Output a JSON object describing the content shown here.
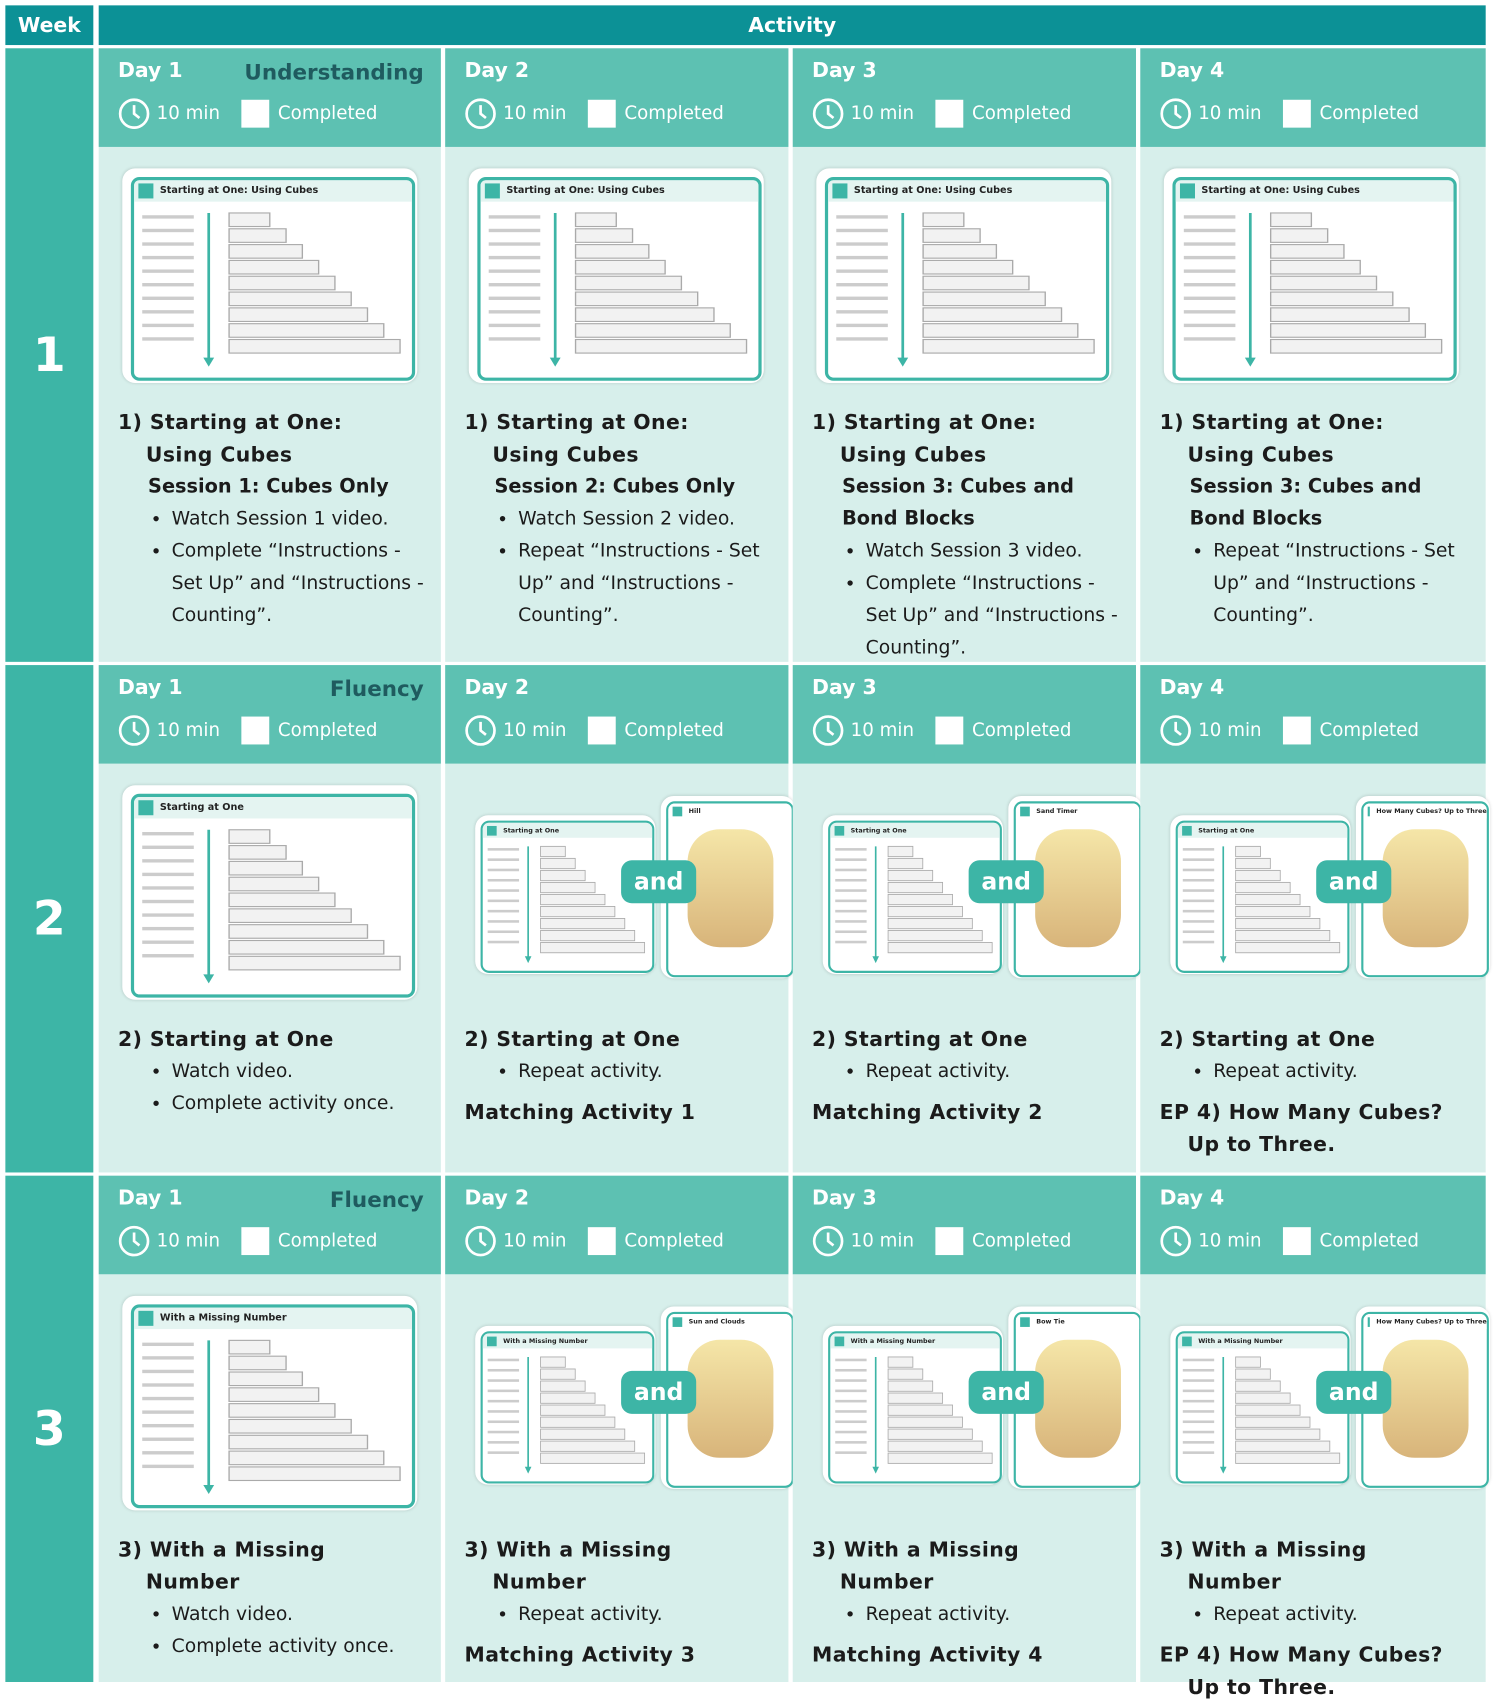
{
  "header": {
    "week": "Week",
    "activity": "Activity"
  },
  "weeks": [
    {
      "number": "1",
      "days": [
        {
          "day": "Day 1",
          "tag": "Understanding",
          "time": "10 min",
          "completed": "Completed",
          "thumbs": [
            {
              "title": "Starting at One: Using Cubes"
            }
          ],
          "title": "1) Starting at One: Using Cubes",
          "session": "Session 1: Cubes Only",
          "bullets": [
            "Watch Session 1 video.",
            "Complete “Instructions - Set Up” and “Instructions - Counting”."
          ]
        },
        {
          "day": "Day 2",
          "time": "10 min",
          "completed": "Completed",
          "thumbs": [
            {
              "title": "Starting at One: Using Cubes"
            }
          ],
          "title": "1) Starting at One: Using Cubes",
          "session": "Session 2: Cubes Only",
          "bullets": [
            "Watch Session 2 video.",
            "Repeat “Instructions - Set Up” and “Instructions - Counting”."
          ]
        },
        {
          "day": "Day 3",
          "time": "10 min",
          "completed": "Completed",
          "thumbs": [
            {
              "title": "Starting at One: Using Cubes"
            }
          ],
          "title": "1) Starting at One: Using Cubes",
          "session": "Session 3: Cubes and Bond Blocks",
          "bullets": [
            "Watch Session 3 video.",
            "Complete “Instructions - Set Up” and “Instructions - Counting”."
          ]
        },
        {
          "day": "Day 4",
          "time": "10 min",
          "completed": "Completed",
          "thumbs": [
            {
              "title": "Starting at One: Using Cubes"
            }
          ],
          "title": "1) Starting at One: Using Cubes",
          "session": "Session 3: Cubes and Bond Blocks",
          "bullets": [
            "Repeat “Instructions - Set Up” and “Instructions - Counting”."
          ]
        }
      ]
    },
    {
      "number": "2",
      "days": [
        {
          "day": "Day 1",
          "tag": "Fluency",
          "time": "10 min",
          "completed": "Completed",
          "thumbs": [
            {
              "title": "Starting at One"
            }
          ],
          "title": "2) Starting at One",
          "bullets": [
            "Watch video.",
            "Complete activity once."
          ]
        },
        {
          "day": "Day 2",
          "time": "10 min",
          "completed": "Completed",
          "thumbs": [
            {
              "title": "Starting at One"
            },
            {
              "title": "Hill"
            }
          ],
          "connector": "and",
          "title": "2) Starting at One",
          "bullets": [
            "Repeat activity."
          ],
          "extra": "Matching Activity 1"
        },
        {
          "day": "Day 3",
          "time": "10 min",
          "completed": "Completed",
          "thumbs": [
            {
              "title": "Starting at One"
            },
            {
              "title": "Sand Timer"
            }
          ],
          "connector": "and",
          "title": "2) Starting at One",
          "bullets": [
            "Repeat activity."
          ],
          "extra": "Matching Activity 2"
        },
        {
          "day": "Day 4",
          "time": "10 min",
          "completed": "Completed",
          "thumbs": [
            {
              "title": "Starting at One"
            },
            {
              "title": "How Many Cubes? Up to Three"
            }
          ],
          "connector": "and",
          "title": "2) Starting at One",
          "bullets": [
            "Repeat activity."
          ],
          "extra": "EP 4) How Many Cubes? Up to Three."
        }
      ]
    },
    {
      "number": "3",
      "days": [
        {
          "day": "Day 1",
          "tag": "Fluency",
          "time": "10 min",
          "completed": "Completed",
          "thumbs": [
            {
              "title": "With a Missing Number"
            }
          ],
          "title": "3) With a Missing Number",
          "bullets": [
            "Watch video.",
            "Complete activity once."
          ]
        },
        {
          "day": "Day 2",
          "time": "10 min",
          "completed": "Completed",
          "thumbs": [
            {
              "title": "With a Missing Number"
            },
            {
              "title": "Sun and Clouds"
            }
          ],
          "connector": "and",
          "title": "3) With a Missing Number",
          "bullets": [
            "Repeat activity."
          ],
          "extra": "Matching Activity 3"
        },
        {
          "day": "Day 3",
          "time": "10 min",
          "completed": "Completed",
          "thumbs": [
            {
              "title": "With a Missing Number"
            },
            {
              "title": "Bow Tie"
            }
          ],
          "connector": "and",
          "title": "3) With a Missing Number",
          "bullets": [
            "Repeat activity."
          ],
          "extra": "Matching Activity 4"
        },
        {
          "day": "Day 4",
          "time": "10 min",
          "completed": "Completed",
          "thumbs": [
            {
              "title": "With a Missing Number"
            },
            {
              "title": "How Many Cubes? Up to Three"
            }
          ],
          "connector": "and",
          "title": "3) With a Missing Number",
          "bullets": [
            "Repeat activity."
          ],
          "extra": "EP 4) How Many Cubes? Up to Three."
        }
      ]
    }
  ]
}
